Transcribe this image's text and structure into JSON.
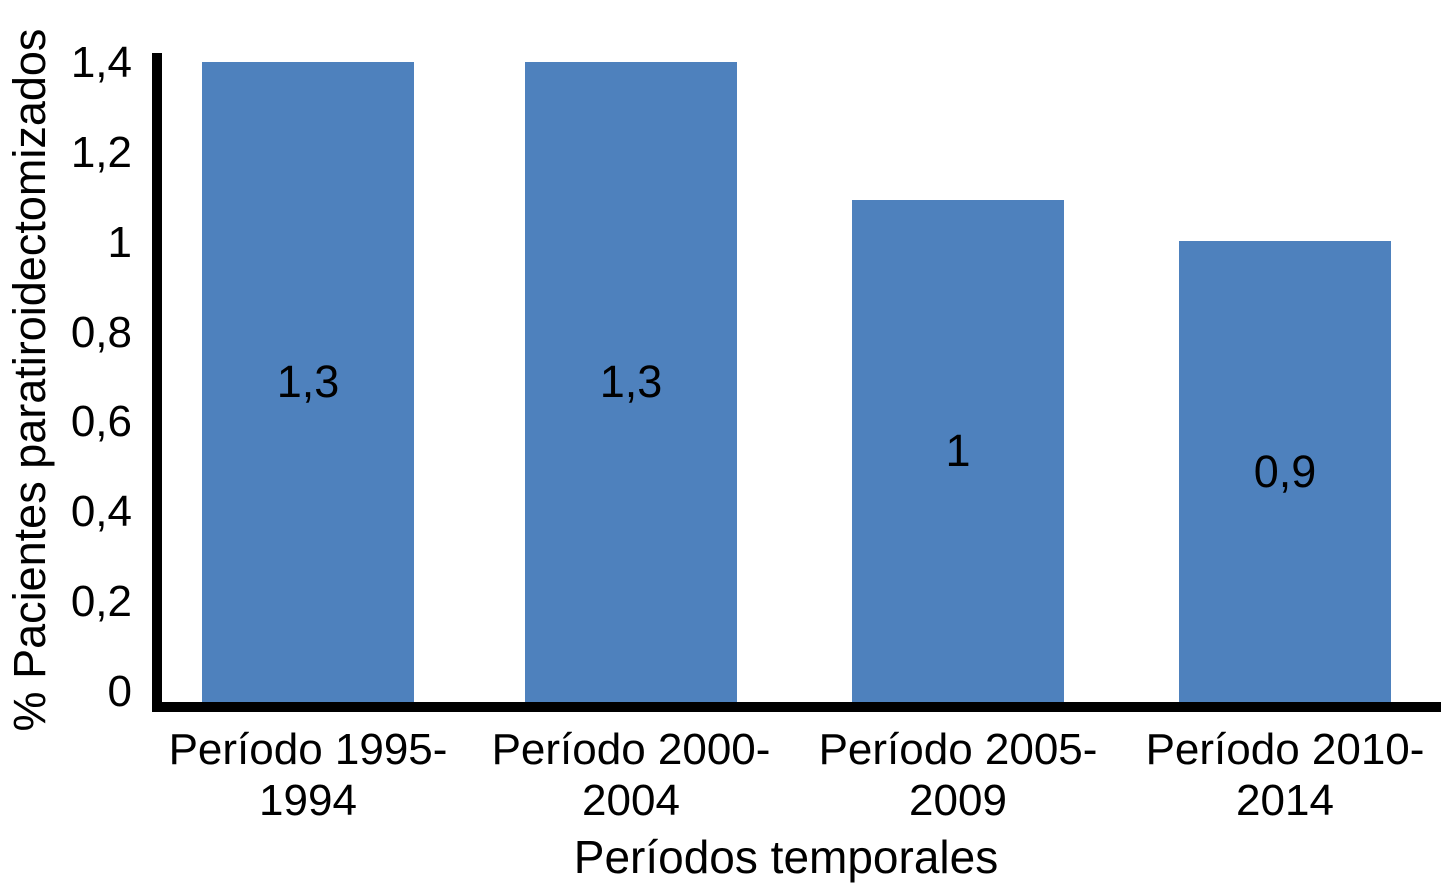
{
  "chart_data": {
    "type": "bar",
    "title": "",
    "xlabel": "Períodos temporales",
    "ylabel": "% Pacientes paratiroidectomizados",
    "categories": [
      {
        "line1": "Período 1995-",
        "line2": "1994"
      },
      {
        "line1": "Período 2000-",
        "line2": "2004"
      },
      {
        "line1": "Período 2005-",
        "line2": "2009"
      },
      {
        "line1": "Período 2010-",
        "line2": "2014"
      }
    ],
    "values": [
      1.3,
      1.3,
      1,
      0.9
    ],
    "data_labels": [
      "1,3",
      "1,3",
      "1",
      "0,9"
    ],
    "bar_visual_heights_axis_units": [
      1.39,
      1.39,
      1.09,
      1.0
    ],
    "ylim": [
      0,
      1.4
    ],
    "yticks": [
      {
        "value": 1.4,
        "label": "1,4"
      },
      {
        "value": 1.2,
        "label": "1,2"
      },
      {
        "value": 1.0,
        "label": "1"
      },
      {
        "value": 0.8,
        "label": "0,8"
      },
      {
        "value": 0.6,
        "label": "0,6"
      },
      {
        "value": 0.4,
        "label": "0,4"
      },
      {
        "value": 0.2,
        "label": "0,2"
      },
      {
        "value": 0.0,
        "label": "0"
      }
    ],
    "grid": false,
    "legend": false,
    "bar_color": "#4e81bd",
    "axis_color": "#000000",
    "text_color": "#000000"
  }
}
